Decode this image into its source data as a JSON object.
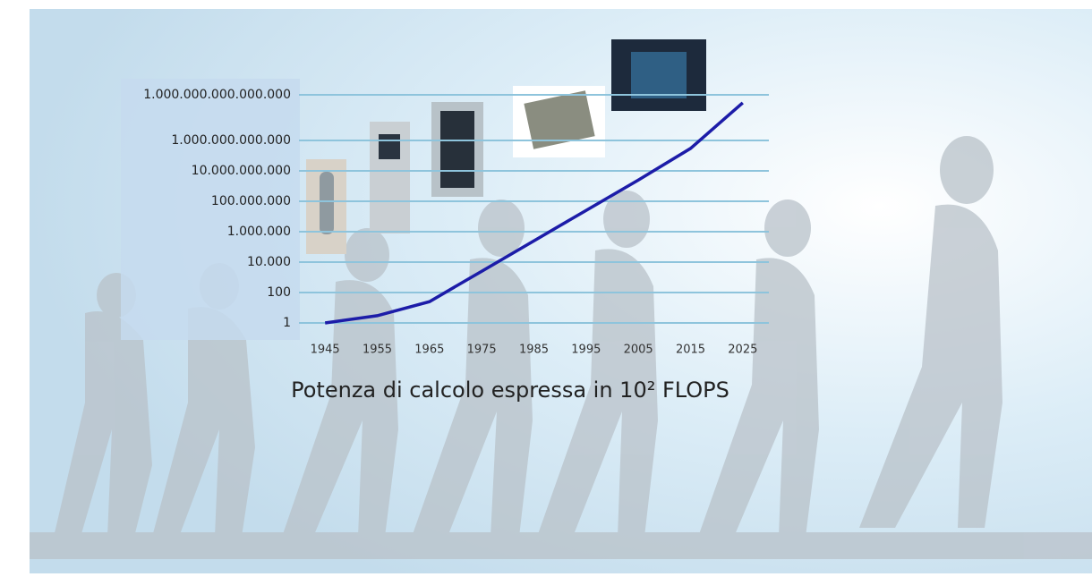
{
  "chart_data": {
    "type": "line",
    "title": "Potenza di calcolo espressa in 10² FLOPS",
    "x": [
      1945,
      1955,
      1965,
      1975,
      1985,
      1995,
      2005,
      2015,
      2025
    ],
    "series": [
      {
        "color": "#1c1ca8",
        "values": [
          1,
          3,
          25,
          2500,
          250000,
          25000000,
          2500000000,
          300000000000,
          300000000000000
        ]
      }
    ],
    "xlim": [
      1940,
      2030
    ],
    "xticks": [
      1945,
      1955,
      1965,
      1975,
      1985,
      1995,
      2005,
      2015,
      2025
    ],
    "ylim": [
      0.1,
      10000000000000000
    ],
    "yticks": [
      1,
      100,
      {
        "value": 10000,
        "label": "10.000"
      },
      {
        "value": 1000000,
        "label": "1.000.000"
      },
      {
        "value": 100000000,
        "label": "100.000.000"
      },
      {
        "value": 10000000000,
        "label": "10.000.000.000"
      },
      {
        "value": 1000000000000,
        "label": "1.000.000.000.000"
      },
      {
        "value": 1000000000000000,
        "label": "1.000.000.000.000.000"
      }
    ],
    "log_scale_y": true,
    "grid": true
  }
}
